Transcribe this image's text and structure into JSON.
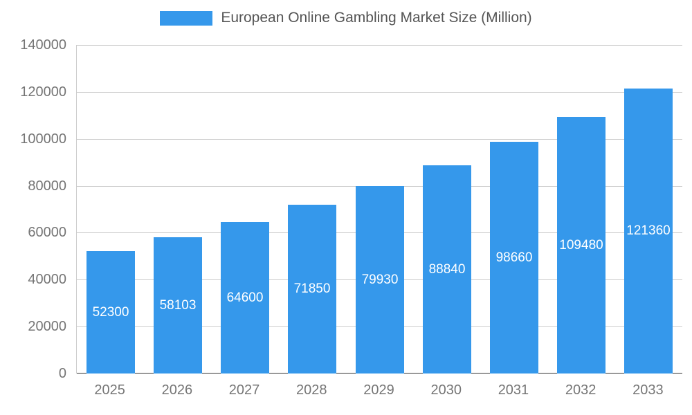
{
  "legend": {
    "title": "European Online Gambling Market Size (Million)"
  },
  "chart_data": {
    "type": "bar",
    "title": "European Online Gambling Market Size (Million)",
    "categories": [
      "2025",
      "2026",
      "2027",
      "2028",
      "2029",
      "2030",
      "2031",
      "2032",
      "2033"
    ],
    "values": [
      52300,
      58103,
      64600,
      71850,
      79930,
      88840,
      98660,
      109480,
      121360
    ],
    "xlabel": "",
    "ylabel": "",
    "ylim": [
      0,
      140000
    ],
    "yticks": [
      0,
      20000,
      40000,
      60000,
      80000,
      100000,
      120000,
      140000
    ],
    "grid": true,
    "legend_position": "top",
    "bar_color": "#3598eb",
    "label_color": "#ffffff",
    "axis_text_color": "#757575",
    "grid_color": "#cccccc",
    "baseline_color": "#333333",
    "title_color": "#555555",
    "background_color": "#ffffff"
  }
}
